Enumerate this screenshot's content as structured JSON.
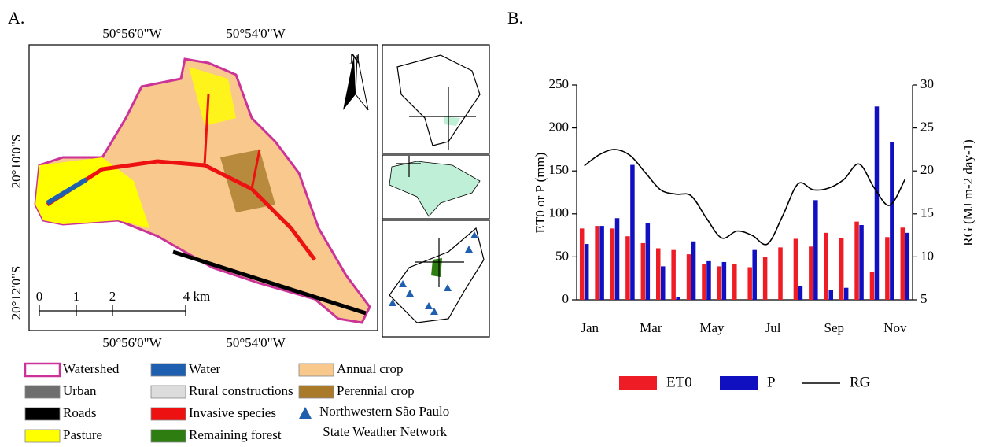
{
  "panels": {
    "a": "A.",
    "b": "B."
  },
  "map": {
    "top_lon": [
      "50°56'0\"W",
      "50°54'0\"W"
    ],
    "bottom_lon": [
      "50°56'0\"W",
      "50°54'0\"W"
    ],
    "left_lat": [
      "20°10'0\"S",
      "20°12'0\"S"
    ],
    "north": "N",
    "scale": [
      "0",
      "1",
      "2",
      "4 km"
    ],
    "legend": [
      {
        "label": "Watershed",
        "color": "#ffffff",
        "border": "#cc3399"
      },
      {
        "label": "Water",
        "color": "#1f5fb0"
      },
      {
        "label": "Annual crop",
        "color": "#f8c88c"
      },
      {
        "label": "Urban",
        "color": "#6e6e6e"
      },
      {
        "label": "Rural constructions",
        "color": "#dcdcdc"
      },
      {
        "label": "Perennial crop",
        "color": "#a87a2a"
      },
      {
        "label": "Roads",
        "color": "#000000"
      },
      {
        "label": "Invasive species",
        "color": "#ee1111"
      },
      {
        "label": "Northwestern São Paulo State Weather Network",
        "color": "#1f5fb0",
        "marker": "triangle"
      },
      {
        "label": "Pasture",
        "color": "#ffff00"
      },
      {
        "label": "Remaining forest",
        "color": "#2e7d10"
      }
    ]
  },
  "chart_data": {
    "type": "bar",
    "categories": [
      "Jan",
      null,
      null,
      null,
      "Mar",
      null,
      null,
      null,
      "May",
      null,
      null,
      null,
      "Jul",
      null,
      null,
      null,
      "Sep",
      null,
      null,
      null,
      "Nov",
      null
    ],
    "series": [
      {
        "name": "ET0",
        "color": "#ee1c25",
        "values": [
          83,
          86,
          83,
          74,
          66,
          60,
          58,
          53,
          42,
          39,
          42,
          38,
          50,
          61,
          71,
          62,
          78,
          72,
          91,
          33,
          73,
          84
        ]
      },
      {
        "name": "P",
        "color": "#1010c0",
        "values": [
          65,
          86,
          95,
          157,
          89,
          39,
          3,
          68,
          45,
          44,
          0,
          58,
          0,
          0,
          16,
          116,
          11,
          14,
          87,
          225,
          184,
          78
        ]
      },
      {
        "name": "RG",
        "color": "#000000",
        "type": "line",
        "axis": "y2",
        "values": [
          20.6,
          21.9,
          22.5,
          21.8,
          19.8,
          17.8,
          17.3,
          17.1,
          14.5,
          12.2,
          13.0,
          12.5,
          11.5,
          14.8,
          18.5,
          17.8,
          18.0,
          19.0,
          20.8,
          18.0,
          16.0,
          19.0
        ]
      }
    ],
    "ylabel": "ET0 or P (mm)",
    "y2label": "RG (MJ m-2 day-1)",
    "ylim": [
      0,
      250
    ],
    "yticks": [
      0,
      50,
      100,
      150,
      200,
      250
    ],
    "y2lim": [
      5,
      30
    ],
    "y2ticks": [
      5,
      10,
      15,
      20,
      25,
      30
    ]
  }
}
